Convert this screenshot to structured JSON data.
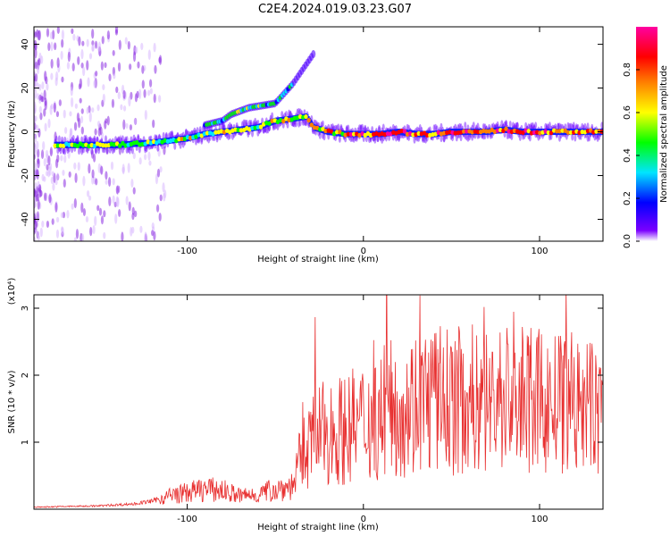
{
  "title": "C2E4.2024.019.03.23.G07",
  "chart_data": [
    {
      "type": "heatmap",
      "xlabel": "Height of straight line (km)",
      "ylabel": "Frequency (Hz)",
      "xlim": [
        -187,
        136
      ],
      "ylim": [
        -50,
        48
      ],
      "xticks": [
        -100,
        0,
        100
      ],
      "xtick_labels": [
        "-100",
        "0",
        "100"
      ],
      "yticks": [
        -40,
        -20,
        0,
        20,
        40
      ],
      "ytick_labels": [
        "-40",
        "-20",
        "0",
        "20",
        "40"
      ],
      "colorbar": {
        "label": "Normalized spectral amplitude",
        "range": [
          0,
          1
        ],
        "ticks": [
          0.0,
          0.2,
          0.4,
          0.6,
          0.8
        ],
        "tick_labels": [
          "0.0",
          "0.2",
          "0.4",
          "0.6",
          "0.8"
        ],
        "colors": [
          "#ffffff",
          "#7b00ff",
          "#0000ff",
          "#00e5ff",
          "#00ff00",
          "#ffff00",
          "#ff8000",
          "#ff0000",
          "#ff00a0"
        ]
      },
      "main_track": [
        [
          -180,
          -6
        ],
        [
          -165,
          -6
        ],
        [
          -150,
          -6
        ],
        [
          -140,
          -6
        ],
        [
          -130,
          -5.5
        ],
        [
          -120,
          -5
        ],
        [
          -110,
          -4
        ],
        [
          -100,
          -3
        ],
        [
          -90,
          -1
        ],
        [
          -80,
          0
        ],
        [
          -70,
          1
        ],
        [
          -60,
          2
        ],
        [
          -50,
          5
        ],
        [
          -40,
          6
        ],
        [
          -32,
          7
        ],
        [
          -28,
          2
        ],
        [
          -20,
          0
        ],
        [
          -10,
          -1
        ],
        [
          0,
          -1
        ],
        [
          10,
          -1
        ],
        [
          20,
          0
        ],
        [
          30,
          -1
        ],
        [
          40,
          -1
        ],
        [
          50,
          0
        ],
        [
          60,
          0
        ],
        [
          70,
          0
        ],
        [
          80,
          1
        ],
        [
          90,
          0
        ],
        [
          100,
          0
        ],
        [
          110,
          0
        ],
        [
          120,
          0
        ],
        [
          136,
          0
        ]
      ],
      "upper_branch": [
        [
          -90,
          3
        ],
        [
          -80,
          5
        ],
        [
          -75,
          8
        ],
        [
          -65,
          11
        ],
        [
          -50,
          13
        ],
        [
          -40,
          22
        ],
        [
          -28,
          36
        ]
      ],
      "grid": false
    },
    {
      "type": "line",
      "xlabel": "Height of straight line (km)",
      "ylabel": "SNR (10 * v/v)",
      "y_multiplier": "(x10⁴)",
      "xlim": [
        -187,
        136
      ],
      "ylim": [
        0,
        3.2
      ],
      "xticks": [
        -100,
        0,
        100
      ],
      "xtick_labels": [
        "-100",
        "0",
        "100"
      ],
      "yticks": [
        1,
        2,
        3
      ],
      "ytick_labels": [
        "1",
        "2",
        "3"
      ],
      "color": "#e83030",
      "series": [
        {
          "x": [
            -187,
            -170,
            -150,
            -130,
            -120,
            -110,
            -100,
            -90,
            -80,
            -70,
            -60,
            -50,
            -40,
            -35,
            -30,
            -25,
            -20,
            -10,
            0,
            10,
            20,
            30,
            40,
            50,
            60,
            70,
            80,
            90,
            100,
            110,
            120,
            130,
            136
          ],
          "y": [
            0.03,
            0.04,
            0.05,
            0.08,
            0.12,
            0.2,
            0.25,
            0.3,
            0.28,
            0.2,
            0.22,
            0.3,
            0.35,
            0.8,
            1.0,
            1.1,
            1.15,
            1.2,
            1.3,
            1.4,
            1.55,
            1.6,
            1.65,
            1.6,
            1.65,
            1.6,
            1.7,
            1.6,
            1.6,
            1.55,
            1.5,
            1.5,
            1.5
          ]
        }
      ]
    }
  ]
}
